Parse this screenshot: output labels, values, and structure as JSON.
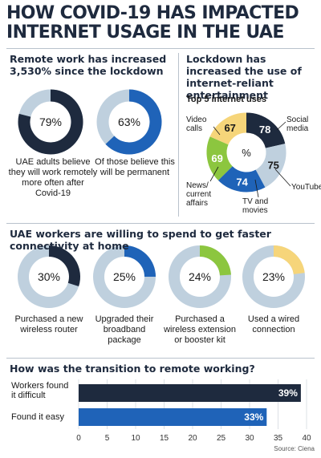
{
  "title": "HOW COVID-19 HAS IMPACTED INTERNET USAGE IN THE UAE",
  "source": "Source: Ciena",
  "colors": {
    "navy": "#1e2a3e",
    "blue": "#1f63b8",
    "light_blue": "#bfd0de",
    "green": "#8cc63f",
    "yellow": "#f6d57a"
  },
  "remote_work": {
    "heading": "Remote work has increased 3,530% since the lockdown",
    "rings": [
      {
        "value_label": "79%",
        "caption": "UAE adults believe they will work remotely more often after Covid-19"
      },
      {
        "value_label": "63%",
        "caption": "Of those believe this will be permanent"
      }
    ]
  },
  "lockdown": {
    "heading": "Lockdown has increased the use of internet-reliant entertainment",
    "subheading": "Top 5 internet uses",
    "center_label": "%",
    "labels": [
      "Social media",
      "YouTube",
      "TV and movies",
      "News/ current affairs",
      "Video calls"
    ]
  },
  "workers": {
    "heading": "UAE workers are willing to spend to get faster connectivity at home",
    "rings": [
      {
        "value_label": "30%",
        "caption": "Purchased a new wireless router"
      },
      {
        "value_label": "25%",
        "caption": "Upgraded their broadband package"
      },
      {
        "value_label": "24%",
        "caption": "Purchased a wireless extension or booster kit"
      },
      {
        "value_label": "23%",
        "caption": "Used a wired connection"
      }
    ]
  },
  "transition": {
    "heading": "How was the transition to remote working?",
    "bar_labels": [
      "39%",
      "33%"
    ]
  },
  "chart_data": [
    {
      "type": "pie",
      "categories": [
        "UAE adults believe they will work remotely more often after Covid-19"
      ],
      "values": [
        79
      ],
      "max": 100
    },
    {
      "type": "pie",
      "categories": [
        "Of those believe this will be permanent"
      ],
      "values": [
        63
      ],
      "max": 100
    },
    {
      "type": "pie",
      "title": "Top 5 internet uses",
      "categories": [
        "Social media",
        "YouTube",
        "TV and movies",
        "News/ current affairs",
        "Video calls"
      ],
      "values": [
        78,
        75,
        74,
        69,
        67
      ]
    },
    {
      "type": "pie",
      "categories": [
        "Purchased a new wireless router"
      ],
      "values": [
        30
      ],
      "max": 100
    },
    {
      "type": "pie",
      "categories": [
        "Upgraded their broadband package"
      ],
      "values": [
        25
      ],
      "max": 100
    },
    {
      "type": "pie",
      "categories": [
        "Purchased a wireless extension or booster kit"
      ],
      "values": [
        24
      ],
      "max": 100
    },
    {
      "type": "pie",
      "categories": [
        "Used a wired connection"
      ],
      "values": [
        23
      ],
      "max": 100
    },
    {
      "type": "bar",
      "orientation": "horizontal",
      "title": "How was the transition to remote working?",
      "categories": [
        "Workers found it difficult",
        "Found it easy"
      ],
      "values": [
        39,
        33
      ],
      "xlim": [
        0,
        40
      ],
      "xticks": [
        0,
        5,
        10,
        15,
        20,
        25,
        30,
        35,
        40
      ]
    }
  ]
}
